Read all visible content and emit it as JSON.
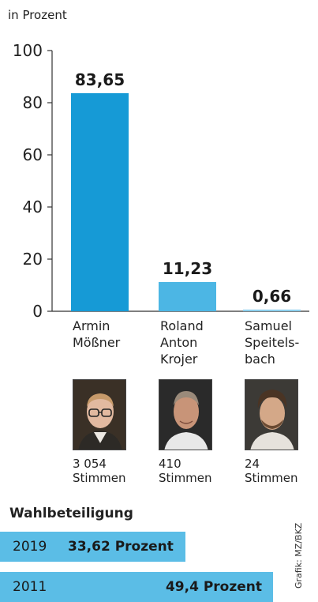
{
  "unit_label": "in Prozent",
  "chart_data": {
    "type": "bar",
    "categories": [
      [
        "Armin",
        "Mößner"
      ],
      [
        "Roland",
        "Anton",
        "Krojer"
      ],
      [
        "Samuel",
        "Speitels-",
        "bach"
      ]
    ],
    "values": [
      83.65,
      11.23,
      0.66
    ],
    "value_labels": [
      "83,65",
      "11,23",
      "0,66"
    ],
    "ylim": [
      0,
      100
    ],
    "yticks": [
      0,
      20,
      40,
      60,
      80,
      100
    ],
    "bar_colors": [
      "#169ad6",
      "#4cb6e4",
      "#8dd0ee"
    ]
  },
  "candidates": [
    {
      "votes_count": "3 054",
      "votes_unit": "Stimmen",
      "photo": "portrait-armin-moessner"
    },
    {
      "votes_count": "410",
      "votes_unit": "Stimmen",
      "photo": "portrait-roland-anton-krojer"
    },
    {
      "votes_count": "24",
      "votes_unit": "Stimmen",
      "photo": "portrait-samuel-speitelsbach"
    }
  ],
  "turnout": {
    "title": "Wahlbeteiligung",
    "rows": [
      {
        "year": "2019",
        "label": "33,62 Prozent",
        "value": 33.62
      },
      {
        "year": "2011",
        "label": "49,4 Prozent",
        "value": 49.4
      }
    ]
  },
  "credit": "Grafik: MZ/BKZ",
  "colors": {
    "bar_primary": "#169ad6",
    "turnout": "#5bbde6"
  }
}
